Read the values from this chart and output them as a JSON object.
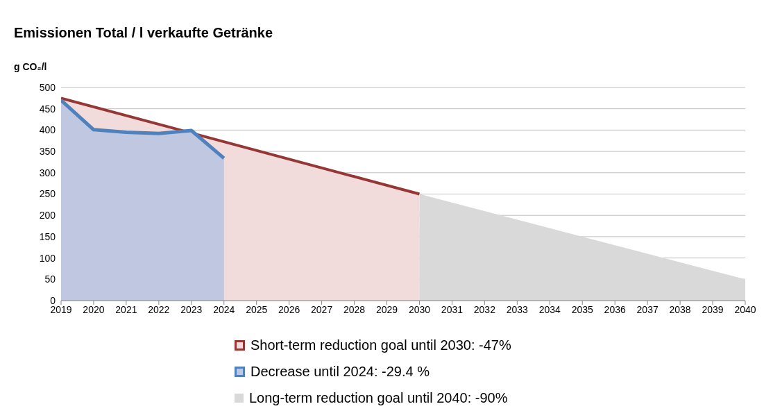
{
  "chart_data": {
    "type": "area",
    "title": "Emissionen Total / l verkaufte Getränke",
    "ylabel": "g CO₂/l",
    "xlim": [
      2019,
      2040
    ],
    "xticks": [
      2019,
      2020,
      2021,
      2022,
      2023,
      2024,
      2025,
      2026,
      2027,
      2028,
      2029,
      2030,
      2031,
      2032,
      2033,
      2034,
      2035,
      2036,
      2037,
      2038,
      2039,
      2040
    ],
    "ylim": [
      0,
      500
    ],
    "yticks": [
      0,
      50,
      100,
      150,
      200,
      250,
      300,
      350,
      400,
      450,
      500
    ],
    "grid": "y",
    "legend": "bottom",
    "series": [
      {
        "name": "Long-term reduction goal until 2040: -90%",
        "color": "#d9d9d9",
        "x": [
          2030,
          2040
        ],
        "values": [
          250,
          50
        ]
      },
      {
        "name": "Short-term reduction goal until 2030: -47%",
        "color": "#953735",
        "x": [
          2019,
          2030
        ],
        "values": [
          475,
          250
        ]
      },
      {
        "name": "Decrease until 2024: -29.4 %",
        "color": "#4f81bd",
        "x": [
          2019,
          2020,
          2021,
          2022,
          2023,
          2024
        ],
        "values": [
          470,
          401,
          395,
          392,
          399,
          334
        ]
      }
    ]
  }
}
